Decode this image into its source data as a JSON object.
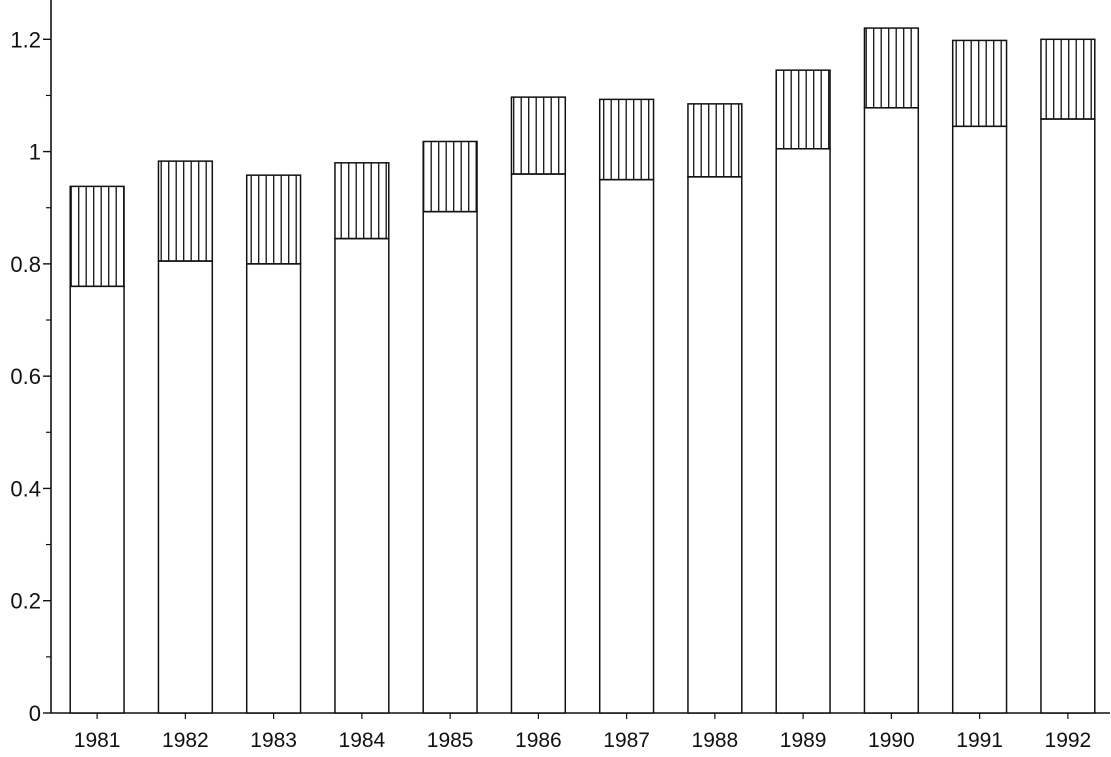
{
  "chart_data": {
    "type": "bar",
    "stacked": true,
    "categories": [
      "1981",
      "1982",
      "1983",
      "1984",
      "1985",
      "1986",
      "1987",
      "1988",
      "1989",
      "1990",
      "1991",
      "1992"
    ],
    "series": [
      {
        "values": [
          0.76,
          0.805,
          0.8,
          0.845,
          0.893,
          0.96,
          0.95,
          0.955,
          1.005,
          1.078,
          1.045,
          1.058
        ]
      },
      {
        "values": [
          0.178,
          0.178,
          0.158,
          0.135,
          0.125,
          0.137,
          0.143,
          0.13,
          0.14,
          0.142,
          0.153,
          0.142
        ]
      }
    ],
    "ylim": [
      0,
      1.27
    ],
    "yticks": [
      0,
      0.2,
      0.4,
      0.6,
      0.8,
      1,
      1.2
    ],
    "ytick_labels": [
      "0",
      "0.2",
      "0.4",
      "0.6",
      "0.8",
      "1",
      "1.2"
    ],
    "grid": false,
    "title": "",
    "xlabel": "",
    "ylabel": ""
  }
}
